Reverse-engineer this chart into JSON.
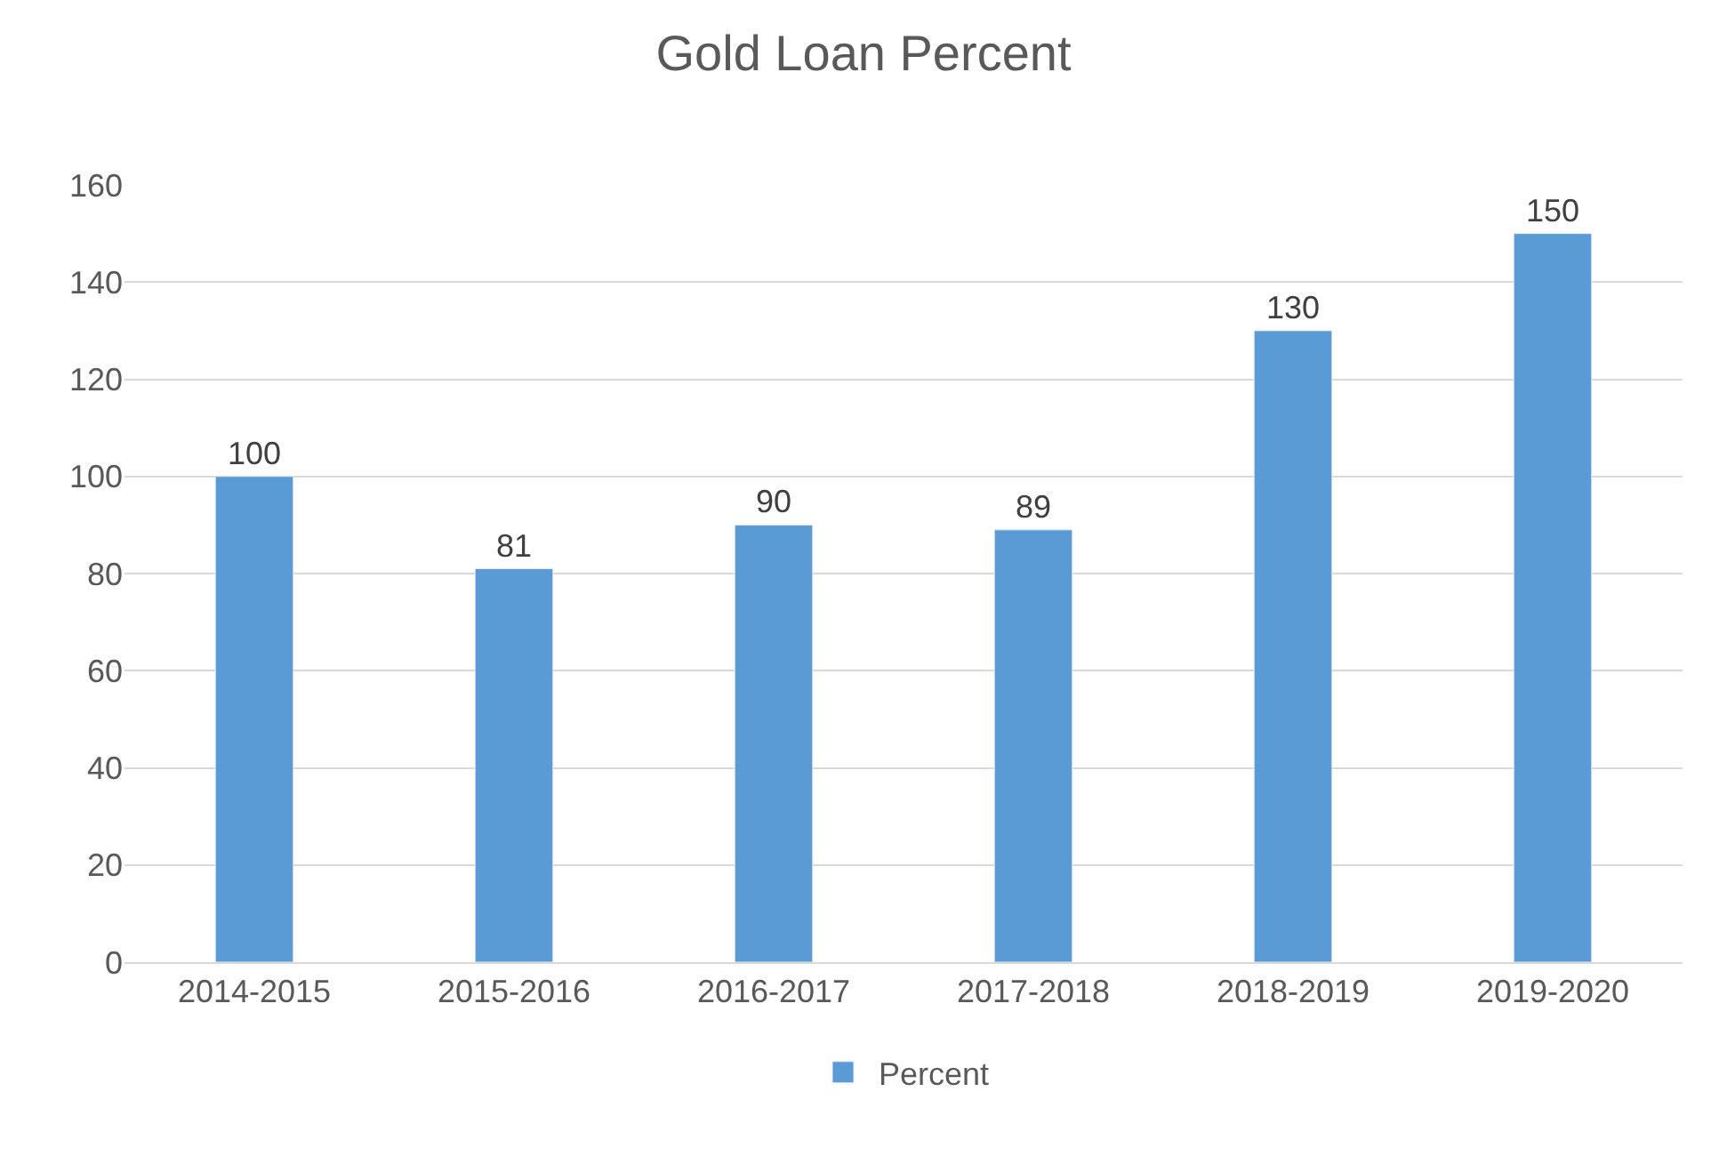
{
  "chart_data": {
    "type": "bar",
    "title": "Gold Loan Percent",
    "categories": [
      "2014-2015",
      "2015-2016",
      "2016-2017",
      "2017-2018",
      "2018-2019",
      "2019-2020"
    ],
    "series": [
      {
        "name": "Percent",
        "color": "#5b9bd5",
        "values": [
          100,
          81,
          90,
          89,
          130,
          150
        ]
      }
    ],
    "ylim": [
      0,
      160
    ],
    "yticks": [
      0,
      20,
      40,
      60,
      80,
      100,
      120,
      140,
      160
    ],
    "grid": "y",
    "legend": "bottom",
    "data_labels": true
  }
}
